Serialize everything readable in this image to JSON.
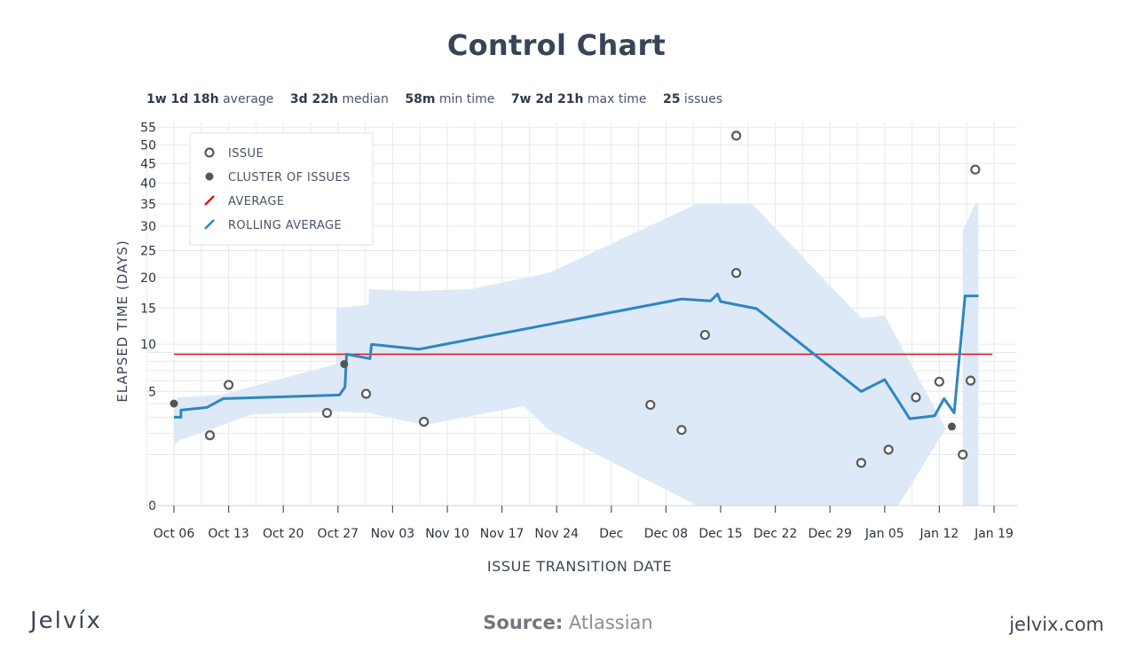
{
  "title": "Control Chart",
  "stats": [
    {
      "value": "1w 1d 18h",
      "label": "average"
    },
    {
      "value": "3d 22h",
      "label": "median"
    },
    {
      "value": "58m",
      "label": "min time"
    },
    {
      "value": "7w 2d 21h",
      "label": "max time"
    },
    {
      "value": "25",
      "label": "issues"
    }
  ],
  "chart_data": {
    "type": "scatter",
    "title": "Control Chart",
    "xlabel": "ISSUE TRANSITION DATE",
    "ylabel": "ELAPSED TIME (DAYS)",
    "x_unit": "days since Oct 06",
    "xlim": [
      0,
      103
    ],
    "ylim": [
      0,
      55
    ],
    "y_scale": "sqrt",
    "x_ticks": [
      {
        "x": 0,
        "label": "Oct 06"
      },
      {
        "x": 7,
        "label": "Oct 13"
      },
      {
        "x": 14,
        "label": "Oct 20"
      },
      {
        "x": 21,
        "label": "Oct 27"
      },
      {
        "x": 28,
        "label": "Nov 03"
      },
      {
        "x": 35,
        "label": "Nov 10"
      },
      {
        "x": 42,
        "label": "Nov 17"
      },
      {
        "x": 49,
        "label": "Nov 24"
      },
      {
        "x": 56,
        "label": "Dec"
      },
      {
        "x": 63,
        "label": "Dec 08"
      },
      {
        "x": 70,
        "label": "Dec 15"
      },
      {
        "x": 77,
        "label": "Dec 22"
      },
      {
        "x": 84,
        "label": "Dec 29"
      },
      {
        "x": 91,
        "label": "Jan 05"
      },
      {
        "x": 98,
        "label": "Jan 12"
      },
      {
        "x": 105,
        "label": "Jan 19"
      }
    ],
    "y_ticks": [
      0,
      5,
      10,
      15,
      20,
      25,
      30,
      35,
      40,
      45,
      50,
      55
    ],
    "y_gridlines": [
      0,
      1,
      2,
      3,
      4,
      5,
      6,
      7,
      8,
      9,
      10,
      15,
      20,
      25,
      30,
      35,
      40,
      45,
      50,
      55
    ],
    "legend": [
      {
        "key": "issue",
        "label": "ISSUE"
      },
      {
        "key": "cluster",
        "label": "CLUSTER OF ISSUES"
      },
      {
        "key": "average",
        "label": "AVERAGE"
      },
      {
        "key": "rolling",
        "label": "ROLLING AVERAGE"
      }
    ],
    "legend_position": "top-left",
    "average": 8.8,
    "issues": [
      {
        "x": 7,
        "y": 5.6
      },
      {
        "x": 4.6,
        "y": 1.9
      },
      {
        "x": 19.6,
        "y": 3.3
      },
      {
        "x": 24.6,
        "y": 4.8
      },
      {
        "x": 32,
        "y": 2.7
      },
      {
        "x": 61,
        "y": 3.9
      },
      {
        "x": 65,
        "y": 2.2
      },
      {
        "x": 68,
        "y": 11.2
      },
      {
        "x": 72,
        "y": 20.8
      },
      {
        "x": 72,
        "y": 52.6
      },
      {
        "x": 88,
        "y": 0.7
      },
      {
        "x": 91.5,
        "y": 1.2
      },
      {
        "x": 95,
        "y": 4.5
      },
      {
        "x": 98,
        "y": 5.9
      },
      {
        "x": 101,
        "y": 1.0
      },
      {
        "x": 102,
        "y": 6.0
      },
      {
        "x": 102.6,
        "y": 43.4
      }
    ],
    "clusters": [
      {
        "x": 0,
        "y": 4.0
      },
      {
        "x": 21.8,
        "y": 7.7
      },
      {
        "x": 99.6,
        "y": 2.4
      }
    ],
    "rolling_average": [
      [
        0,
        3.0
      ],
      [
        0.9,
        3.0
      ],
      [
        0.9,
        3.5
      ],
      [
        4.2,
        3.7
      ],
      [
        6.3,
        4.4
      ],
      [
        21.2,
        4.7
      ],
      [
        21.9,
        5.4
      ],
      [
        22.1,
        8.8
      ],
      [
        25.1,
        8.3
      ],
      [
        25.3,
        10.0
      ],
      [
        31.4,
        9.4
      ],
      [
        65,
        16.4
      ],
      [
        68.7,
        16.1
      ],
      [
        69.6,
        17.2
      ],
      [
        70,
        16.0
      ],
      [
        74.6,
        14.9
      ],
      [
        88,
        5.0
      ],
      [
        91,
        6.1
      ],
      [
        94.2,
        2.9
      ],
      [
        97.4,
        3.1
      ],
      [
        98.6,
        4.4
      ],
      [
        99.9,
        3.3
      ],
      [
        101.3,
        16.9
      ],
      [
        103,
        16.9
      ]
    ],
    "band_upper": [
      [
        0,
        3.4
      ],
      [
        0.5,
        4.5
      ],
      [
        6,
        4.7
      ],
      [
        20.8,
        7.7
      ],
      [
        20.8,
        15.0
      ],
      [
        24.9,
        15.5
      ],
      [
        25,
        18.0
      ],
      [
        31,
        17.7
      ],
      [
        38,
        18.0
      ],
      [
        48,
        20.8
      ],
      [
        67,
        35.0
      ],
      [
        74,
        35.0
      ],
      [
        88,
        13.5
      ],
      [
        91,
        13.9
      ],
      [
        98.8,
        2.3
      ],
      [
        101,
        2.9
      ],
      [
        101,
        29.0
      ],
      [
        102.6,
        35.0
      ],
      [
        103,
        35.0
      ]
    ],
    "band_lower": [
      [
        103,
        0
      ],
      [
        101,
        0
      ],
      [
        101,
        2.9
      ],
      [
        99,
        2.4
      ],
      [
        92.7,
        0
      ],
      [
        67,
        0
      ],
      [
        48,
        2.2
      ],
      [
        44.8,
        3.8
      ],
      [
        32,
        2.5
      ],
      [
        24.9,
        3.3
      ],
      [
        20.8,
        3.4
      ],
      [
        10,
        3.2
      ],
      [
        0.5,
        1.6
      ],
      [
        0,
        1.3
      ]
    ]
  },
  "brand": {
    "name": "Jelvíx",
    "source_label": "Source:",
    "source_value": "Atlassian",
    "site": "jelvix.com"
  },
  "colors": {
    "title": "#394459",
    "rolling": "#2e86c1",
    "band": "#dde9f6",
    "average": "#e0151a",
    "issue_stroke": "#5a5a5a",
    "cluster": "#555555",
    "grid": "#e7e9ec",
    "axis_text": "#2b3240"
  }
}
